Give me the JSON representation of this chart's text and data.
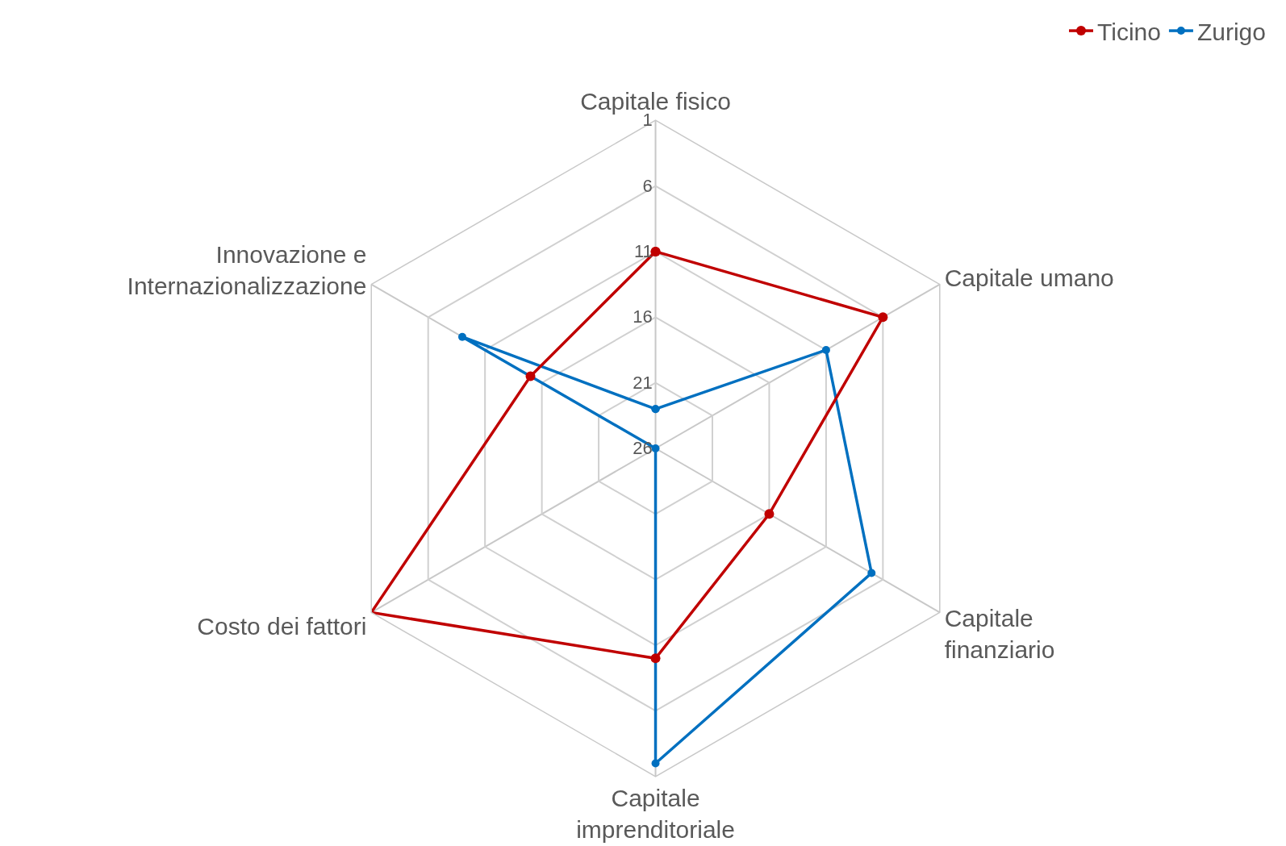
{
  "chart_data": {
    "type": "radar",
    "categories": [
      "Capitale fisico",
      "Capitale umano",
      "Capitale\nfinanziario",
      "Capitale\nimprenditoriale",
      "Costo dei fattori",
      "Innovazione e\nInternazionalizzazione"
    ],
    "series": [
      {
        "name": "Ticino",
        "color": "#c00000",
        "values": [
          11,
          6,
          16,
          10,
          1,
          15
        ]
      },
      {
        "name": "Zurigo",
        "color": "#0070c0",
        "values": [
          23,
          11,
          7,
          2,
          26,
          9
        ]
      }
    ],
    "ylim": [
      26,
      1
    ],
    "yticks": [
      1,
      6,
      11,
      16,
      21,
      26
    ],
    "grid": true,
    "legend": "top right",
    "marker": "circle",
    "line_style": "solid"
  }
}
